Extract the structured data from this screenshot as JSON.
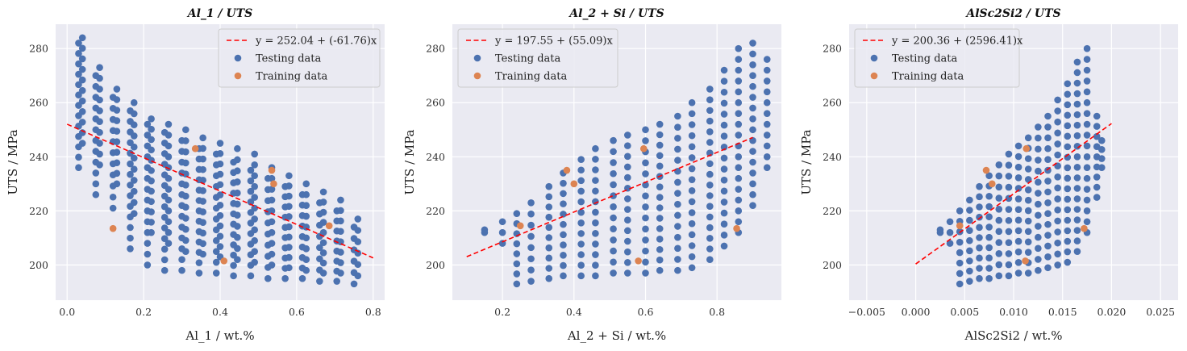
{
  "chart_data": [
    {
      "type": "scatter",
      "title": "Al_1 / UTS",
      "xlabel": "Al_1 / wt.%",
      "ylabel": "UTS / MPa",
      "xlim": [
        -0.03,
        0.83
      ],
      "ylim": [
        187,
        289
      ],
      "xticks": [
        0,
        0.2,
        0.4,
        0.6,
        0.8
      ],
      "xtick_labels": [
        "0.0",
        "0.2",
        "0.4",
        "0.6",
        "0.8"
      ],
      "yticks": [
        200,
        220,
        240,
        260,
        280
      ],
      "ytick_labels": [
        "200",
        "220",
        "240",
        "260",
        "280"
      ],
      "grid": true,
      "legend_position": "top-right",
      "fit": {
        "label": "y = 252.04 + (-61.76)x",
        "intercept": 252.04,
        "slope": -61.76,
        "x_range": [
          0,
          0.8
        ],
        "color": "#ff0000"
      },
      "series": [
        {
          "name": "Testing data",
          "color": "#4c72b0",
          "columns": [
            {
              "x": 0.03,
              "ymin": 236,
              "ymax": 282
            },
            {
              "x": 0.04,
              "ymin": 245,
              "ymax": 284
            },
            {
              "x": 0.075,
              "ymin": 226,
              "ymax": 270
            },
            {
              "x": 0.085,
              "ymin": 237,
              "ymax": 273
            },
            {
              "x": 0.12,
              "ymin": 221,
              "ymax": 262
            },
            {
              "x": 0.13,
              "ymin": 230,
              "ymax": 265
            },
            {
              "x": 0.165,
              "ymin": 206,
              "ymax": 257
            },
            {
              "x": 0.175,
              "ymin": 219,
              "ymax": 260
            },
            {
              "x": 0.21,
              "ymin": 200,
              "ymax": 252
            },
            {
              "x": 0.22,
              "ymin": 212,
              "ymax": 254
            },
            {
              "x": 0.255,
              "ymin": 198,
              "ymax": 249
            },
            {
              "x": 0.265,
              "ymin": 208,
              "ymax": 252
            },
            {
              "x": 0.3,
              "ymin": 198,
              "ymax": 246
            },
            {
              "x": 0.31,
              "ymin": 205,
              "ymax": 250
            },
            {
              "x": 0.345,
              "ymin": 197,
              "ymax": 243
            },
            {
              "x": 0.355,
              "ymin": 204,
              "ymax": 247
            },
            {
              "x": 0.39,
              "ymin": 197,
              "ymax": 241
            },
            {
              "x": 0.4,
              "ymin": 203,
              "ymax": 245
            },
            {
              "x": 0.435,
              "ymin": 196,
              "ymax": 238
            },
            {
              "x": 0.445,
              "ymin": 202,
              "ymax": 243
            },
            {
              "x": 0.48,
              "ymin": 196,
              "ymax": 235
            },
            {
              "x": 0.49,
              "ymin": 201,
              "ymax": 241
            },
            {
              "x": 0.525,
              "ymin": 195,
              "ymax": 232
            },
            {
              "x": 0.535,
              "ymin": 200,
              "ymax": 236
            },
            {
              "x": 0.57,
              "ymin": 195,
              "ymax": 229
            },
            {
              "x": 0.58,
              "ymin": 199,
              "ymax": 233
            },
            {
              "x": 0.615,
              "ymin": 195,
              "ymax": 226
            },
            {
              "x": 0.625,
              "ymin": 198,
              "ymax": 230
            },
            {
              "x": 0.66,
              "ymin": 194,
              "ymax": 223
            },
            {
              "x": 0.67,
              "ymin": 197,
              "ymax": 227
            },
            {
              "x": 0.705,
              "ymin": 194,
              "ymax": 220
            },
            {
              "x": 0.715,
              "ymin": 197,
              "ymax": 224
            },
            {
              "x": 0.75,
              "ymin": 193,
              "ymax": 214
            },
            {
              "x": 0.76,
              "ymin": 196,
              "ymax": 217
            }
          ]
        },
        {
          "name": "Training data",
          "color": "#dd8452",
          "points": [
            {
              "x": 0.12,
              "y": 213.5
            },
            {
              "x": 0.335,
              "y": 243
            },
            {
              "x": 0.41,
              "y": 201.5
            },
            {
              "x": 0.535,
              "y": 235
            },
            {
              "x": 0.54,
              "y": 230
            },
            {
              "x": 0.685,
              "y": 214.5
            }
          ]
        }
      ]
    },
    {
      "type": "scatter",
      "title": "Al_2 + Si / UTS",
      "xlabel": "Al_2 + Si / wt.%",
      "ylabel": "UTS / MPa",
      "xlim": [
        0.06,
        0.98
      ],
      "ylim": [
        187,
        289
      ],
      "xticks": [
        0.2,
        0.4,
        0.6,
        0.8
      ],
      "xtick_labels": [
        "0.2",
        "0.4",
        "0.6",
        "0.8"
      ],
      "yticks": [
        200,
        220,
        240,
        260,
        280
      ],
      "ytick_labels": [
        "200",
        "220",
        "240",
        "260",
        "280"
      ],
      "grid": true,
      "legend_position": "top-left",
      "fit": {
        "label": "y = 197.55 + (55.09)x",
        "intercept": 197.55,
        "slope": 55.09,
        "x_range": [
          0.1,
          0.9
        ],
        "color": "#ff0000"
      },
      "series": [
        {
          "name": "Testing data",
          "color": "#4c72b0",
          "columns": [
            {
              "x": 0.15,
              "ymin": 212,
              "ymax": 213
            },
            {
              "x": 0.2,
              "ymin": 208,
              "ymax": 216
            },
            {
              "x": 0.24,
              "ymin": 193,
              "ymax": 219
            },
            {
              "x": 0.28,
              "ymin": 194,
              "ymax": 223
            },
            {
              "x": 0.33,
              "ymin": 195,
              "ymax": 229
            },
            {
              "x": 0.37,
              "ymin": 196,
              "ymax": 234
            },
            {
              "x": 0.42,
              "ymin": 196,
              "ymax": 239
            },
            {
              "x": 0.46,
              "ymin": 196,
              "ymax": 243
            },
            {
              "x": 0.51,
              "ymin": 197,
              "ymax": 246
            },
            {
              "x": 0.55,
              "ymin": 197,
              "ymax": 248
            },
            {
              "x": 0.6,
              "ymin": 197,
              "ymax": 250
            },
            {
              "x": 0.64,
              "ymin": 198,
              "ymax": 252
            },
            {
              "x": 0.69,
              "ymin": 198,
              "ymax": 255
            },
            {
              "x": 0.73,
              "ymin": 199,
              "ymax": 260
            },
            {
              "x": 0.78,
              "ymin": 202,
              "ymax": 265
            },
            {
              "x": 0.82,
              "ymin": 207,
              "ymax": 272
            },
            {
              "x": 0.86,
              "ymin": 212,
              "ymax": 280
            },
            {
              "x": 0.9,
              "ymin": 222,
              "ymax": 282
            },
            {
              "x": 0.94,
              "ymin": 236,
              "ymax": 276
            }
          ]
        },
        {
          "name": "Training data",
          "color": "#dd8452",
          "points": [
            {
              "x": 0.25,
              "y": 214.5
            },
            {
              "x": 0.38,
              "y": 235
            },
            {
              "x": 0.4,
              "y": 230
            },
            {
              "x": 0.58,
              "y": 201.5
            },
            {
              "x": 0.595,
              "y": 243
            },
            {
              "x": 0.855,
              "y": 213.5
            }
          ]
        }
      ]
    },
    {
      "type": "scatter",
      "title": "AlSc2Si2 / UTS",
      "xlabel": "AlSc2Si2 / wt.%",
      "ylabel": "UTS / MPa",
      "xlim": [
        -0.0068,
        0.0268
      ],
      "ylim": [
        187,
        289
      ],
      "xticks": [
        -0.005,
        0,
        0.005,
        0.01,
        0.015,
        0.02,
        0.025
      ],
      "xtick_labels": [
        "−0.005",
        "0.000",
        "0.005",
        "0.010",
        "0.015",
        "0.020",
        "0.025"
      ],
      "yticks": [
        200,
        220,
        240,
        260,
        280
      ],
      "ytick_labels": [
        "200",
        "220",
        "240",
        "260",
        "280"
      ],
      "grid": true,
      "legend_position": "top-left",
      "fit": {
        "label": "y = 200.36 + (2596.41)x",
        "intercept": 200.36,
        "slope": 2596.41,
        "x_range": [
          0,
          0.02
        ],
        "color": "#ff0000"
      },
      "series": [
        {
          "name": "Testing data",
          "color": "#4c72b0",
          "columns": [
            {
              "x": 0.0025,
              "ymin": 212,
              "ymax": 213
            },
            {
              "x": 0.0035,
              "ymin": 208,
              "ymax": 216
            },
            {
              "x": 0.0045,
              "ymin": 193,
              "ymax": 220
            },
            {
              "x": 0.0055,
              "ymin": 194,
              "ymax": 224
            },
            {
              "x": 0.0065,
              "ymin": 195,
              "ymax": 229
            },
            {
              "x": 0.0075,
              "ymin": 195,
              "ymax": 233
            },
            {
              "x": 0.0085,
              "ymin": 196,
              "ymax": 237
            },
            {
              "x": 0.0095,
              "ymin": 196,
              "ymax": 241
            },
            {
              "x": 0.0105,
              "ymin": 197,
              "ymax": 244
            },
            {
              "x": 0.0115,
              "ymin": 197,
              "ymax": 247
            },
            {
              "x": 0.0125,
              "ymin": 198,
              "ymax": 251
            },
            {
              "x": 0.0135,
              "ymin": 199,
              "ymax": 255
            },
            {
              "x": 0.0145,
              "ymin": 200,
              "ymax": 261
            },
            {
              "x": 0.0155,
              "ymin": 201,
              "ymax": 267
            },
            {
              "x": 0.0165,
              "ymin": 205,
              "ymax": 275
            },
            {
              "x": 0.0175,
              "ymin": 212,
              "ymax": 280
            },
            {
              "x": 0.0185,
              "ymin": 225,
              "ymax": 255
            },
            {
              "x": 0.019,
              "ymin": 236,
              "ymax": 246
            }
          ]
        },
        {
          "name": "Training data",
          "color": "#dd8452",
          "points": [
            {
              "x": 0.0045,
              "y": 214.5
            },
            {
              "x": 0.0072,
              "y": 235
            },
            {
              "x": 0.0078,
              "y": 230
            },
            {
              "x": 0.0112,
              "y": 201.5
            },
            {
              "x": 0.0113,
              "y": 243
            },
            {
              "x": 0.0172,
              "y": 213.5
            }
          ]
        }
      ]
    }
  ]
}
